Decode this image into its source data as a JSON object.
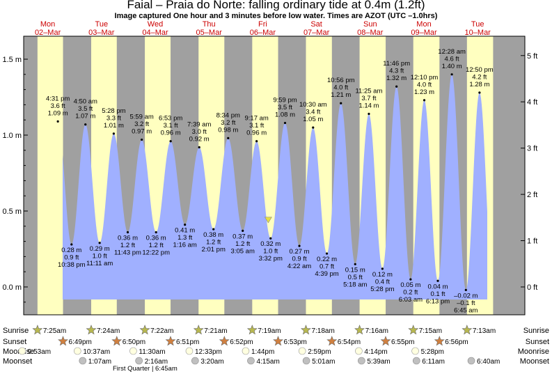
{
  "title": "Faial – Praia do Norte: falling  ordinary tide at 0.4m (1.2ft)",
  "subtitle": "Image captured One hour and 3 minutes before low water. Times are AZOT (UTC –1.0hrs)",
  "colors": {
    "day": "#ffffc0",
    "night": "#a0a0a0",
    "tide_fill": "#a0b0ff",
    "day_label": "#cc0000",
    "now_marker": "#e8e040",
    "star_sunrise": "#b8b850",
    "star_sunset": "#d08040",
    "moon": "#ffffe0",
    "moonset": "#c0c0c0"
  },
  "chart_data": {
    "type": "area",
    "title": "Faial – Praia do Norte: falling  ordinary tide at 0.4m (1.2ft)",
    "y_unit_left": "m",
    "y_unit_right": "ft",
    "ylim": [
      -0.16,
      1.62
    ],
    "y_ticks_left": [
      "1.5 m",
      "1.0 m",
      "0.5 m",
      "0.0 m"
    ],
    "y_ticks_left_values": [
      1.5,
      1.0,
      0.5,
      0.0
    ],
    "y_ticks_right": [
      "5 ft",
      "4 ft",
      "3 ft",
      "2 ft",
      "1 ft",
      "0 ft"
    ],
    "y_ticks_right_values": [
      5,
      4,
      3,
      2,
      1,
      0
    ],
    "days": [
      {
        "dow": "Mon",
        "date": "02–Mar"
      },
      {
        "dow": "Tue",
        "date": "03–Mar"
      },
      {
        "dow": "Wed",
        "date": "04–Mar"
      },
      {
        "dow": "Thu",
        "date": "05–Mar"
      },
      {
        "dow": "Fri",
        "date": "06–Mar"
      },
      {
        "dow": "Sat",
        "date": "07–Mar"
      },
      {
        "dow": "Sun",
        "date": "08–Mar"
      },
      {
        "dow": "Mon",
        "date": "09–Mar"
      },
      {
        "dow": "Tue",
        "date": "10–Mar"
      }
    ],
    "sunrise": [
      "7:25am",
      "7:24am",
      "7:22am",
      "7:21am",
      "7:19am",
      "7:18am",
      "7:16am",
      "7:15am",
      "7:13am"
    ],
    "sunset": [
      "6:49pm",
      "6:50pm",
      "6:51pm",
      "6:52pm",
      "6:53pm",
      "6:54pm",
      "6:55pm",
      "6:56pm"
    ],
    "moonrise": [
      "9:53am",
      "10:37am",
      "11:30am",
      "12:33pm",
      "1:44pm",
      "2:59pm",
      "4:14pm",
      "5:28pm"
    ],
    "moonset": [
      "1:07am",
      "2:16am",
      "3:20am",
      "4:15am",
      "5:01am",
      "5:39am",
      "6:11am",
      "6:40am"
    ],
    "moon_phase": "First Quarter | 6:45am",
    "row_labels": {
      "sunrise": "Sunrise",
      "sunset": "Sunset",
      "moonrise": "Moonrise",
      "moonset": "Moonset"
    },
    "current": {
      "day": 4,
      "time": "2:29 pm",
      "height_m": 0.4
    },
    "tides": [
      {
        "type": "high",
        "day": 0,
        "hour": 16.52,
        "time": "4:31 pm",
        "m": 1.09,
        "ft": "3.6 ft",
        "m_label": "1.09 m"
      },
      {
        "type": "low",
        "day": 0,
        "hour": 22.63,
        "time": "10:38 pm",
        "m": 0.28,
        "ft": "0.9 ft",
        "m_label": "0.28 m"
      },
      {
        "type": "high",
        "day": 1,
        "hour": 4.83,
        "time": "4:50 am",
        "m": 1.07,
        "ft": "3.5 ft",
        "m_label": "1.07 m"
      },
      {
        "type": "low",
        "day": 1,
        "hour": 11.18,
        "time": "11:11 am",
        "m": 0.29,
        "ft": "1.0 ft",
        "m_label": "0.29 m"
      },
      {
        "type": "high",
        "day": 1,
        "hour": 17.47,
        "time": "5:28 pm",
        "m": 1.01,
        "ft": "3.3 ft",
        "m_label": "1.01 m"
      },
      {
        "type": "low",
        "day": 1,
        "hour": 23.72,
        "time": "11:43 pm",
        "m": 0.36,
        "ft": "1.2 ft",
        "m_label": "0.36 m"
      },
      {
        "type": "high",
        "day": 2,
        "hour": 5.98,
        "time": "5:59 am",
        "m": 0.97,
        "ft": "3.2 ft",
        "m_label": "0.97 m"
      },
      {
        "type": "low",
        "day": 2,
        "hour": 12.37,
        "time": "12:22 pm",
        "m": 0.36,
        "ft": "1.2 ft",
        "m_label": "0.36 m"
      },
      {
        "type": "high",
        "day": 2,
        "hour": 18.88,
        "time": "6:53 pm",
        "m": 0.96,
        "ft": "3.1 ft",
        "m_label": "0.96 m"
      },
      {
        "type": "low",
        "day": 3,
        "hour": 1.27,
        "time": "1:16 am",
        "m": 0.41,
        "ft": "1.3 ft",
        "m_label": "0.41 m"
      },
      {
        "type": "high",
        "day": 3,
        "hour": 7.65,
        "time": "7:39 am",
        "m": 0.92,
        "ft": "3.0 ft",
        "m_label": "0.92 m"
      },
      {
        "type": "low",
        "day": 3,
        "hour": 14.02,
        "time": "2:01 pm",
        "m": 0.38,
        "ft": "1.2 ft",
        "m_label": "0.38 m"
      },
      {
        "type": "high",
        "day": 3,
        "hour": 20.57,
        "time": "8:34 pm",
        "m": 0.98,
        "ft": "3.2 ft",
        "m_label": "0.98 m"
      },
      {
        "type": "low",
        "day": 4,
        "hour": 3.08,
        "time": "3:05 am",
        "m": 0.37,
        "ft": "1.2 ft",
        "m_label": "0.37 m"
      },
      {
        "type": "high",
        "day": 4,
        "hour": 9.28,
        "time": "9:17 am",
        "m": 0.96,
        "ft": "3.1 ft",
        "m_label": "0.96 m"
      },
      {
        "type": "low",
        "day": 4,
        "hour": 15.53,
        "time": "3:32 pm",
        "m": 0.32,
        "ft": "1.0 ft",
        "m_label": "0.32 m"
      },
      {
        "type": "high",
        "day": 4,
        "hour": 21.98,
        "time": "9:59 pm",
        "m": 1.08,
        "ft": "3.5 ft",
        "m_label": "1.08 m"
      },
      {
        "type": "low",
        "day": 5,
        "hour": 4.37,
        "time": "4:22 am",
        "m": 0.27,
        "ft": "0.9 ft",
        "m_label": "0.27 m"
      },
      {
        "type": "high",
        "day": 5,
        "hour": 10.5,
        "time": "10:30 am",
        "m": 1.05,
        "ft": "3.4 ft",
        "m_label": "1.05 m"
      },
      {
        "type": "low",
        "day": 5,
        "hour": 16.65,
        "time": "4:39 pm",
        "m": 0.22,
        "ft": "0.7 ft",
        "m_label": "0.22 m"
      },
      {
        "type": "high",
        "day": 5,
        "hour": 22.93,
        "time": "10:56 pm",
        "m": 1.21,
        "ft": "4.0 ft",
        "m_label": "1.21 m"
      },
      {
        "type": "low",
        "day": 6,
        "hour": 5.3,
        "time": "5:18 am",
        "m": 0.15,
        "ft": "0.5 ft",
        "m_label": "0.15 m"
      },
      {
        "type": "high",
        "day": 6,
        "hour": 11.42,
        "time": "11:25 am",
        "m": 1.14,
        "ft": "3.7 ft",
        "m_label": "1.14 m"
      },
      {
        "type": "low",
        "day": 6,
        "hour": 17.47,
        "time": "5:28 pm",
        "m": 0.12,
        "ft": "0.4 ft",
        "m_label": "0.12 m"
      },
      {
        "type": "high",
        "day": 6,
        "hour": 23.77,
        "time": "11:46 pm",
        "m": 1.32,
        "ft": "4.3 ft",
        "m_label": "1.32 m"
      },
      {
        "type": "low",
        "day": 7,
        "hour": 6.05,
        "time": "6:03 am",
        "m": 0.05,
        "ft": "0.2 ft",
        "m_label": "0.05 m"
      },
      {
        "type": "high",
        "day": 7,
        "hour": 12.17,
        "time": "12:10 pm",
        "m": 1.23,
        "ft": "4.0 ft",
        "m_label": "1.23 m"
      },
      {
        "type": "low",
        "day": 7,
        "hour": 18.22,
        "time": "6:13 pm",
        "m": 0.04,
        "ft": "0.1 ft",
        "m_label": "0.04 m"
      },
      {
        "type": "high",
        "day": 8,
        "hour": 0.47,
        "time": "12:28 am",
        "m": 1.4,
        "ft": "4.6 ft",
        "m_label": "1.40 m"
      },
      {
        "type": "low",
        "day": 8,
        "hour": 6.75,
        "time": "6:45 am",
        "m": -0.02,
        "ft": "–0.1 ft",
        "m_label": "–0.02 m"
      },
      {
        "type": "high",
        "day": 8,
        "hour": 12.83,
        "time": "12:50 pm",
        "m": 1.28,
        "ft": "4.2 ft",
        "m_label": "1.28 m"
      }
    ]
  }
}
